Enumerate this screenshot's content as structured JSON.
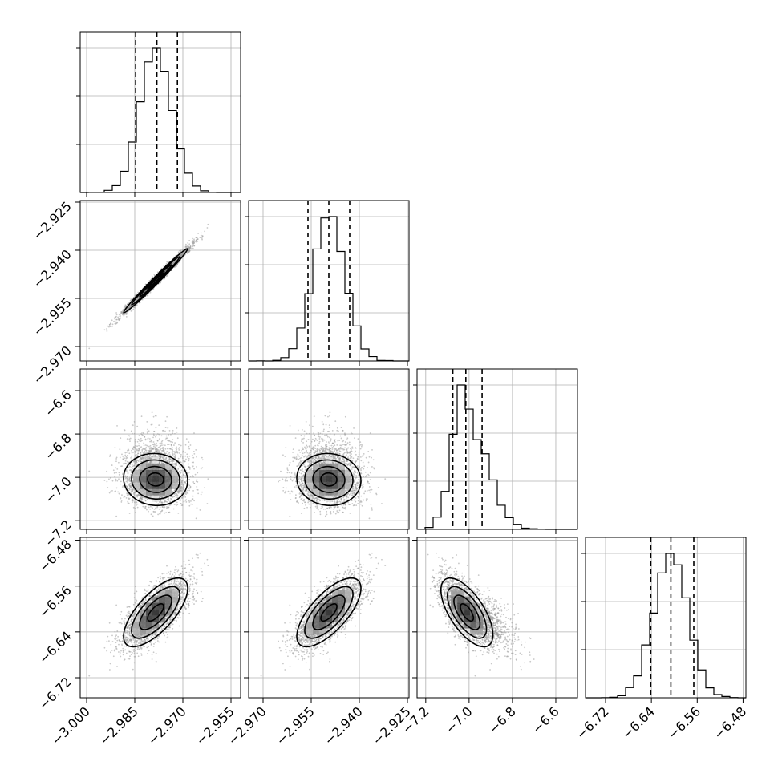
{
  "chart_data": {
    "type": "corner",
    "grid": true,
    "parameters": [
      {
        "range": [
          -3.002,
          -2.952
        ],
        "ticks": [
          -3.0,
          -2.985,
          -2.97,
          -2.955
        ],
        "tick_labels": [
          "−3.000",
          "−2.985",
          "−2.970",
          "−2.955"
        ],
        "mean": -2.9785,
        "std": 0.005,
        "quantiles": [
          -2.9847,
          -2.9781,
          -2.9717
        ]
      },
      {
        "range": [
          -2.9745,
          -2.9245
        ],
        "ticks": [
          -2.97,
          -2.955,
          -2.94,
          -2.925
        ],
        "tick_labels": [
          "−2.970",
          "−2.955",
          "−2.940",
          "−2.925"
        ],
        "mean": -2.9495,
        "std": 0.005,
        "quantiles": [
          -2.956,
          -2.9495,
          -2.943
        ]
      },
      {
        "range": [
          -7.24,
          -6.5
        ],
        "ticks": [
          -7.2,
          -7.0,
          -6.8,
          -6.6
        ],
        "tick_labels": [
          "−7.2",
          "−7.0",
          "−6.8",
          "−6.6"
        ],
        "mean": -7.01,
        "std": 0.06,
        "quantiles": [
          -7.075,
          -7.015,
          -6.94
        ]
      },
      {
        "range": [
          -6.755,
          -6.475
        ],
        "ticks": [
          -6.72,
          -6.64,
          -6.56,
          -6.48
        ],
        "tick_labels": [
          "−6.72",
          "−6.64",
          "−6.56",
          "−6.48"
        ],
        "mean": -6.606,
        "std": 0.03,
        "quantiles": [
          -6.641,
          -6.606,
          -6.566
        ]
      }
    ],
    "correlations": [
      {
        "pair": [
          1,
          0
        ],
        "rho": 0.99
      },
      {
        "pair": [
          2,
          0
        ],
        "rho": -0.05
      },
      {
        "pair": [
          2,
          1
        ],
        "rho": -0.05
      },
      {
        "pair": [
          3,
          0
        ],
        "rho": 0.7
      },
      {
        "pair": [
          3,
          1
        ],
        "rho": 0.7
      },
      {
        "pair": [
          3,
          2
        ],
        "rho": -0.65
      }
    ],
    "histogram_bins": 20,
    "contour_levels_sigma": [
      0.5,
      1.0,
      1.5,
      2.0
    ],
    "y_tick_labels_shown_for_rows": [
      1,
      2,
      3
    ],
    "x_tick_labels_shown_for_bottom_row": true
  },
  "colors": {
    "line": "#000000",
    "grid": "#b0b0b0",
    "points": "#9a9a9a",
    "background": "#ffffff"
  }
}
